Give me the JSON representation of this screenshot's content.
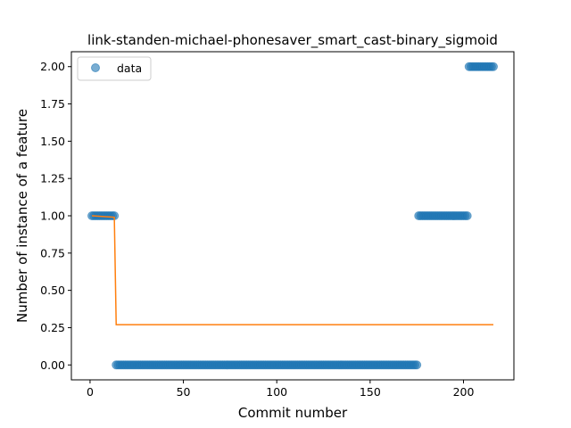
{
  "chart_data": {
    "type": "scatter",
    "title": "link-standen-michael-phonesaver_smart_cast-binary_sigmoid",
    "xlabel": "Commit number",
    "ylabel": "Number of instance of a feature",
    "xlim": [
      -10,
      227
    ],
    "ylim": [
      -0.1,
      2.1
    ],
    "xticks": [
      0,
      50,
      100,
      150,
      200
    ],
    "yticks": [
      "0.00",
      "0.25",
      "0.50",
      "0.75",
      "1.00",
      "1.25",
      "1.50",
      "1.75",
      "2.00"
    ],
    "grid": false,
    "legend": {
      "position": "top-left",
      "entries": [
        "data"
      ]
    },
    "series": [
      {
        "name": "data",
        "kind": "scatter",
        "color": "#1f77b4",
        "segments": [
          {
            "x_start": 1,
            "x_end": 13,
            "y": 1
          },
          {
            "x_start": 14,
            "x_end": 175,
            "y": 0
          },
          {
            "x_start": 176,
            "x_end": 202,
            "y": 1
          },
          {
            "x_start": 203,
            "x_end": 216,
            "y": 2
          }
        ]
      },
      {
        "kind": "line",
        "color": "#ff7f0e",
        "x": [
          1,
          13,
          14,
          216
        ],
        "y": [
          1.0,
          0.99,
          0.27,
          0.27
        ]
      }
    ]
  }
}
